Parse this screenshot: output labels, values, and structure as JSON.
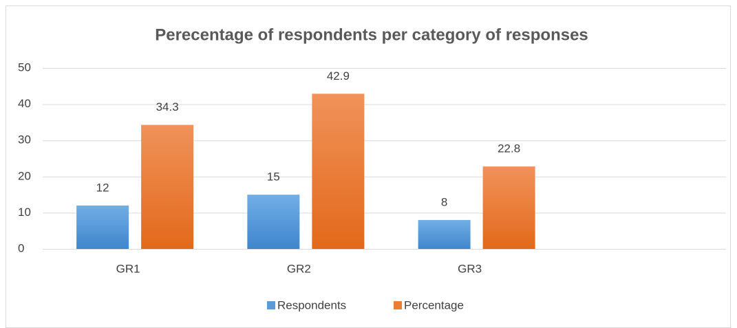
{
  "chart_data": {
    "type": "bar",
    "title": "Perecentage of respondents  per category of responses",
    "categories": [
      "GR1",
      "GR2",
      "GR3",
      null
    ],
    "series": [
      {
        "name": "Respondents",
        "color": "#5b9bd5",
        "values": [
          12,
          15,
          8,
          null
        ]
      },
      {
        "name": "Percentage",
        "color": "#ed7d31",
        "values": [
          34.3,
          42.9,
          22.8,
          null
        ]
      }
    ],
    "ylim": [
      0,
      50
    ],
    "yticks": [
      0,
      10,
      20,
      30,
      40,
      50
    ],
    "grid": true,
    "legend": "bottom"
  }
}
